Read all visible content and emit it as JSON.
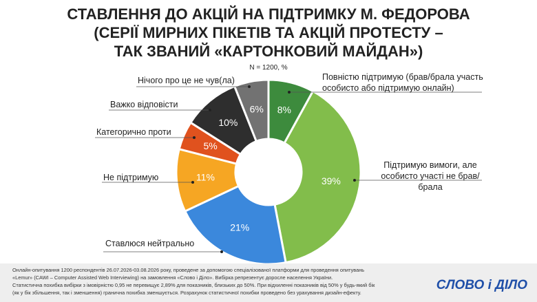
{
  "chart_data": {
    "type": "donut",
    "title": [
      "СТАВЛЕННЯ ДО АКЦІЙ НА ПІДТРИМКУ М. ФЕДОРОВА",
      "(СЕРІЇ МИРНИХ ПІКЕТІВ ТА АКЦІЙ ПРОТЕСТУ –",
      "ТАК ЗВАНИЙ «КАРТОНКОВИЙ МАЙДАН»)"
    ],
    "subtitle": "N = 1200, %",
    "categories": [
      "Повністю підтримую (брав/брала участь особисто або підтримую онлайн)",
      "Підтримую вимоги, але особисто участі не брав/брала",
      "Ставлюся нейтрально",
      "Не підтримую",
      "Категорично проти",
      "Важко відповісти",
      "Нічого про це не чув(ла)"
    ],
    "values": [
      8,
      39,
      21,
      11,
      5,
      10,
      6
    ],
    "value_labels": [
      "8%",
      "39%",
      "21%",
      "11%",
      "5%",
      "10%",
      "6%"
    ],
    "colors": [
      "#3d8b3d",
      "#82bd4b",
      "#3b88dc",
      "#f6a623",
      "#e0521e",
      "#2e2e2e",
      "#727272"
    ],
    "footnote": [
      "Онлайн-опитування 1200 респондентів 26.07.2026-03.08.2026 року, проведене за допомогою спеціалізованої платформи для проведення опитувань",
      "«Lemur» (CAWI – Computer Assisted Web Interviewing) на замовлення «Слово і Діло». Вибірка репрезентує доросле населення України.",
      "Статистична похибка вибірки з імовірністю 0,95 не перевищує 2,89% для показників, близьких до 50%. При відхиленні показників від 50% у будь-який бік",
      "(як у бік збільшення, так і зменшення) гранична похибка зменшується. Розрахунок статистичної похибки проведено без урахування дизайн-ефекту."
    ],
    "logo": "СЛОВО і ДІЛО"
  }
}
